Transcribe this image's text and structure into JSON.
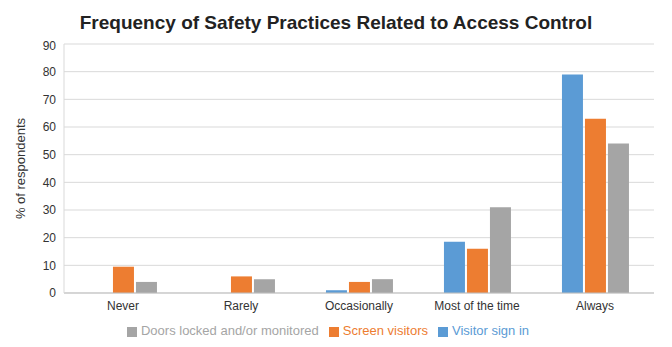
{
  "chart_data": {
    "type": "bar",
    "title": "Frequency of Safety Practices Related to Access Control",
    "y_label": "% of respondents",
    "categories": [
      "Never",
      "Rarely",
      "Occasionally",
      "Most of the time",
      "Always"
    ],
    "series": [
      {
        "name": "Visitor sign in",
        "color": "#5b9bd5",
        "values": [
          0,
          0,
          1,
          18.5,
          79
        ]
      },
      {
        "name": "Screen visitors",
        "color": "#ed7d31",
        "values": [
          9.5,
          6,
          4,
          16,
          63
        ]
      },
      {
        "name": "Doors locked and/or monitored",
        "color": "#a5a5a5",
        "values": [
          4,
          5,
          5,
          31,
          54
        ]
      }
    ],
    "ylim": [
      0,
      90
    ],
    "yticks": [
      0,
      10,
      20,
      30,
      40,
      50,
      60,
      70,
      80,
      90
    ],
    "grid": true,
    "legend": "bottom"
  }
}
